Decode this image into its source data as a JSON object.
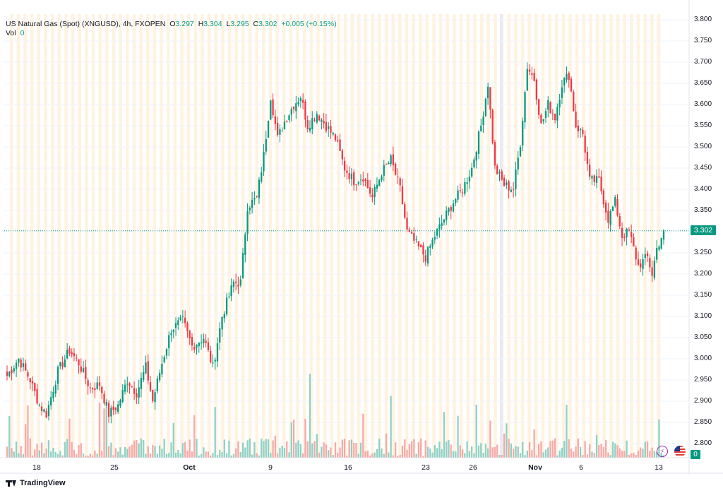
{
  "header": {
    "symbol": "US Natural Gas (Spot) (XNGUSD), 4h, FXOPEN",
    "o_label": "O",
    "o_value": "3.297",
    "h_label": "H",
    "h_value": "3.304",
    "l_label": "L",
    "l_value": "3.295",
    "c_label": "C",
    "c_value": "3.302",
    "change": "+0.005 (+0.15%)",
    "vol_label": "Vol",
    "vol_value": "0"
  },
  "price_tag": "3.302",
  "vol_tag": "0",
  "footer": {
    "brand": "TradingView"
  },
  "icons": [
    "lightning-icon",
    "us-flag-icon",
    "tradingview-logo-icon"
  ],
  "colors": {
    "up": "#089981",
    "down": "#f23645",
    "vol_up": "#8fd1c6",
    "vol_down": "#f7a9a7",
    "session_band": "#fff3e0",
    "marker_band": "#e8eaf6"
  },
  "chart_data": {
    "type": "candlestick",
    "title": "US Natural Gas (Spot) (XNGUSD), 4h, FXOPEN",
    "ylim": [
      2.775,
      3.8
    ],
    "y_ticks": [
      "3.800",
      "3.750",
      "3.700",
      "3.650",
      "3.600",
      "3.550",
      "3.500",
      "3.450",
      "3.400",
      "3.350",
      "3.300",
      "3.250",
      "3.200",
      "3.150",
      "3.100",
      "3.050",
      "3.000",
      "2.950",
      "2.900",
      "2.850",
      "2.800"
    ],
    "x_ticks": [
      {
        "label": "18",
        "bold": false
      },
      {
        "label": "25",
        "bold": false
      },
      {
        "label": "Oct",
        "bold": true
      },
      {
        "label": "9",
        "bold": false
      },
      {
        "label": "16",
        "bold": false
      },
      {
        "label": "23",
        "bold": false
      },
      {
        "label": "26",
        "bold": false
      },
      {
        "label": "Nov",
        "bold": true
      },
      {
        "label": "6",
        "bold": false
      },
      {
        "label": "13",
        "bold": false
      }
    ],
    "last_close": 3.302,
    "grid": true,
    "anchors": [
      [
        0,
        2.96
      ],
      [
        5,
        3.0
      ],
      [
        10,
        2.95
      ],
      [
        14,
        2.89
      ],
      [
        17,
        2.87
      ],
      [
        22,
        2.97
      ],
      [
        27,
        3.02
      ],
      [
        31,
        2.99
      ],
      [
        36,
        2.93
      ],
      [
        40,
        2.94
      ],
      [
        44,
        2.87
      ],
      [
        48,
        2.89
      ],
      [
        52,
        2.95
      ],
      [
        56,
        2.92
      ],
      [
        60,
        2.98
      ],
      [
        63,
        2.9
      ],
      [
        67,
        2.99
      ],
      [
        71,
        3.07
      ],
      [
        76,
        3.09
      ],
      [
        80,
        3.03
      ],
      [
        85,
        3.05
      ],
      [
        89,
        2.98
      ],
      [
        93,
        3.1
      ],
      [
        98,
        3.18
      ],
      [
        101,
        3.18
      ],
      [
        104,
        3.36
      ],
      [
        108,
        3.38
      ],
      [
        111,
        3.48
      ],
      [
        114,
        3.62
      ],
      [
        117,
        3.52
      ],
      [
        120,
        3.56
      ],
      [
        124,
        3.6
      ],
      [
        127,
        3.62
      ],
      [
        130,
        3.55
      ],
      [
        134,
        3.58
      ],
      [
        138,
        3.55
      ],
      [
        142,
        3.52
      ],
      [
        146,
        3.45
      ],
      [
        150,
        3.42
      ],
      [
        154,
        3.43
      ],
      [
        158,
        3.38
      ],
      [
        162,
        3.44
      ],
      [
        166,
        3.47
      ],
      [
        170,
        3.4
      ],
      [
        173,
        3.3
      ],
      [
        177,
        3.27
      ],
      [
        181,
        3.24
      ],
      [
        185,
        3.29
      ],
      [
        189,
        3.33
      ],
      [
        193,
        3.37
      ],
      [
        197,
        3.4
      ],
      [
        201,
        3.45
      ],
      [
        205,
        3.55
      ],
      [
        208,
        3.65
      ],
      [
        211,
        3.45
      ],
      [
        215,
        3.41
      ],
      [
        219,
        3.4
      ],
      [
        222,
        3.51
      ],
      [
        225,
        3.69
      ],
      [
        228,
        3.66
      ],
      [
        231,
        3.55
      ],
      [
        234,
        3.6
      ],
      [
        237,
        3.57
      ],
      [
        240,
        3.65
      ],
      [
        243,
        3.67
      ],
      [
        246,
        3.55
      ],
      [
        249,
        3.53
      ],
      [
        252,
        3.42
      ],
      [
        256,
        3.42
      ],
      [
        260,
        3.33
      ],
      [
        263,
        3.37
      ],
      [
        266,
        3.29
      ],
      [
        269,
        3.3
      ],
      [
        273,
        3.22
      ],
      [
        277,
        3.24
      ],
      [
        279,
        3.2
      ],
      [
        281,
        3.26
      ],
      [
        284,
        3.302
      ]
    ],
    "volume_notes": "Tick volume histogram at bottom; notable spikes near Oct 12 (about 2.98), Oct 25 (about 2.89), Oct 28 (about 2.86), Nov 5 (about 2.92)."
  }
}
